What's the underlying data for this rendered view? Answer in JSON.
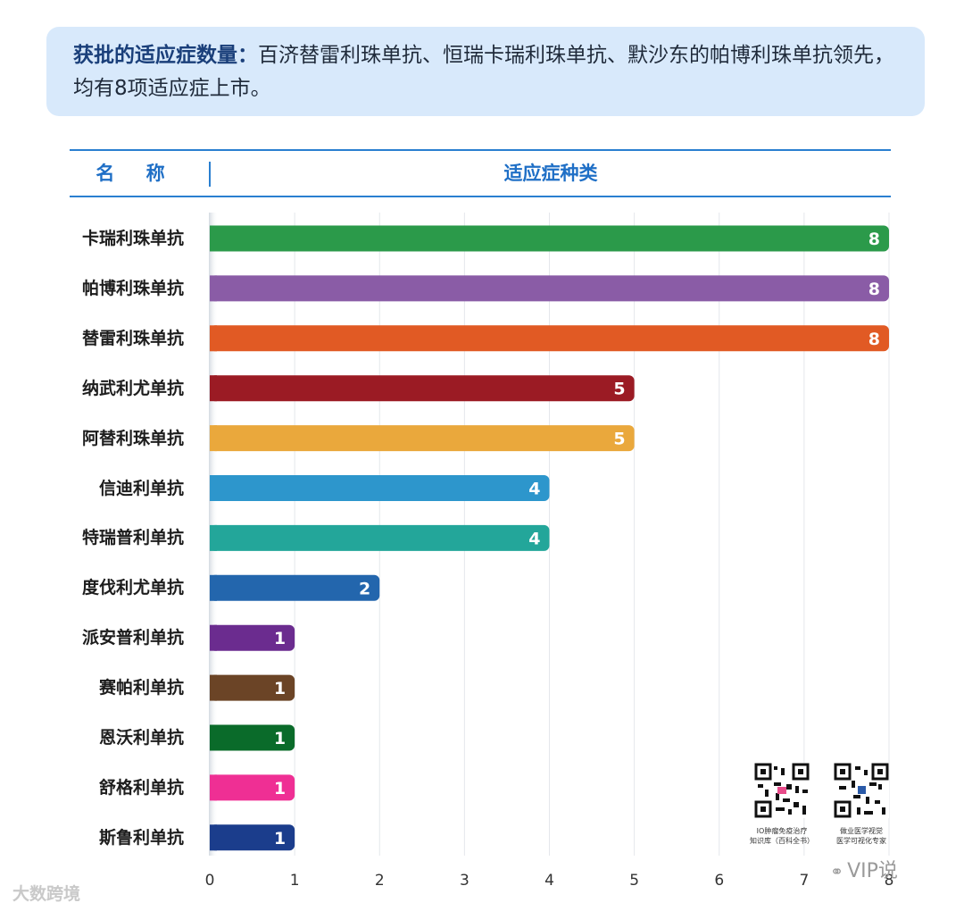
{
  "callout": {
    "strong": "获批的适应症数量：",
    "text": "百济替雷利珠单抗、恒瑞卡瑞利珠单抗、默沙东的帕博利珠单抗领先，均有8项适应症上市。"
  },
  "table_header": {
    "name": "名 称",
    "type": "适应症种类"
  },
  "chart_data": {
    "type": "bar",
    "orientation": "horizontal",
    "categories": [
      "卡瑞利珠单抗",
      "帕博利珠单抗",
      "替雷利珠单抗",
      "纳武利尤单抗",
      "阿替利珠单抗",
      "信迪利单抗",
      "特瑞普利单抗",
      "度伐利尤单抗",
      "派安普利单抗",
      "赛帕利单抗",
      "恩沃利单抗",
      "舒格利单抗",
      "斯鲁利单抗"
    ],
    "values": [
      8,
      8,
      8,
      5,
      5,
      4,
      4,
      2,
      1,
      1,
      1,
      1,
      1
    ],
    "colors": [
      "#2b9a4a",
      "#8a5ca6",
      "#e15a24",
      "#9b1b24",
      "#eaa83c",
      "#2d96cc",
      "#23a69a",
      "#2366ad",
      "#6b2c8f",
      "#6b4426",
      "#0a6b2a",
      "#ef2f94",
      "#1b3d8c"
    ],
    "xlim": [
      0,
      8
    ],
    "xticks": [
      "0",
      "1",
      "2",
      "3",
      "4",
      "5",
      "6",
      "7",
      "8"
    ],
    "grid": true
  },
  "qr": [
    {
      "caption_line1": "IO肿瘤免疫治疗",
      "caption_line2": "知识库（百科全书）"
    },
    {
      "caption_line1": "做业医学视觉",
      "caption_line2": "医学可视化专家"
    }
  ],
  "brand": {
    "icon": "wechat-icon",
    "name": "VIP说"
  },
  "corner_mark": "大数跨境"
}
